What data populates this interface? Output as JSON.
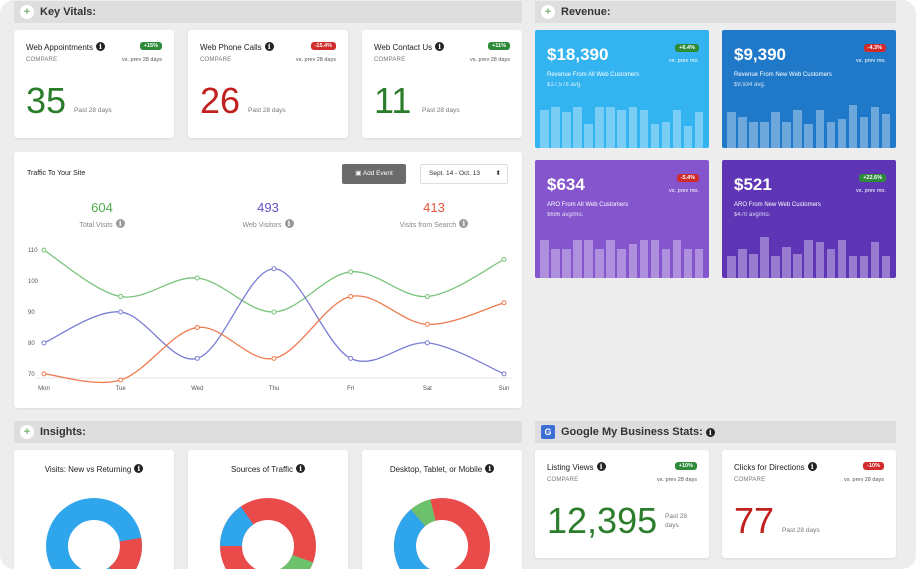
{
  "sections": {
    "key_vitals": "Key Vitals:",
    "revenue": "Revenue:",
    "insights": "Insights:",
    "gmb": "Google My Business Stats:"
  },
  "vitals": [
    {
      "title": "Web Appointments",
      "compare": "COMPARE",
      "badge": "+15%",
      "trend": "up",
      "vs": "vs. prev 28 days",
      "value": "35",
      "past": "Past 28 days"
    },
    {
      "title": "Web Phone Calls",
      "compare": "COMPARE",
      "badge": "-15.4%",
      "trend": "down",
      "vs": "vs. prev 28 days",
      "value": "26",
      "past": "Past 28 days"
    },
    {
      "title": "Web Contact Us",
      "compare": "COMPARE",
      "badge": "+11%",
      "trend": "up",
      "vs": "vs. prev 28 days",
      "value": "11",
      "past": "Past 28 days"
    }
  ],
  "revenue": [
    {
      "amount": "$18,390",
      "badge": "+6.4%",
      "trend": "up",
      "vs": "vs. prev mo.",
      "label": "Revenue From All Web Customers",
      "sub": "$17,578 avg.",
      "color": "#33b3f0",
      "bars": [
        0.8,
        0.85,
        0.75,
        0.85,
        0.5,
        0.85,
        0.85,
        0.8,
        0.85,
        0.8,
        0.5,
        0.55,
        0.8,
        0.45,
        0.75
      ]
    },
    {
      "amount": "$9,390",
      "badge": "-4.3%",
      "trend": "down",
      "vs": "vs. prev mo.",
      "label": "Revenue From New Web Customers",
      "sub": "$9,934 avg.",
      "color": "#1f79c8",
      "bars": [
        0.75,
        0.65,
        0.55,
        0.55,
        0.75,
        0.55,
        0.8,
        0.5,
        0.8,
        0.55,
        0.6,
        0.9,
        0.65,
        0.85,
        0.7
      ]
    },
    {
      "amount": "$634",
      "badge": "-5.4%",
      "trend": "down",
      "vs": "vs. prev mo.",
      "label": "ARO From All Web Customers",
      "sub": "$696 avg/mo.",
      "color": "#8455cc",
      "bars": [
        0.8,
        0.6,
        0.6,
        0.8,
        0.8,
        0.6,
        0.8,
        0.6,
        0.7,
        0.8,
        0.8,
        0.6,
        0.8,
        0.6,
        0.6
      ]
    },
    {
      "amount": "$521",
      "badge": "+22.6%",
      "trend": "up",
      "vs": "vs. prev mo.",
      "label": "ARO From New Web Customers",
      "sub": "$470 avg/mo.",
      "color": "#5e35b5",
      "bars": [
        0.45,
        0.6,
        0.5,
        0.85,
        0.45,
        0.65,
        0.5,
        0.8,
        0.75,
        0.6,
        0.8,
        0.45,
        0.45,
        0.75,
        0.45
      ]
    }
  ],
  "traffic": {
    "title": "Traffic To Your Site",
    "add_event": "Add Event",
    "date_range": "Sept. 14 - Oct. 13",
    "stats": [
      {
        "value": "604",
        "label": "Total Visits",
        "color": "#4cae4c"
      },
      {
        "value": "493",
        "label": "Web Visitors",
        "color": "#6a4fc9"
      },
      {
        "value": "413",
        "label": "Visits from Search",
        "color": "#e4553a"
      }
    ]
  },
  "chart_data": {
    "type": "line",
    "categories": [
      "Mon",
      "Tue",
      "Wed",
      "Thu",
      "Fri",
      "Sat",
      "Sun"
    ],
    "ylim": [
      68,
      112
    ],
    "yticks": [
      "110",
      "100",
      "90",
      "80",
      "70"
    ],
    "series": [
      {
        "color": "#7ac47a",
        "values": [
          110,
          95,
          101,
          90,
          103,
          95,
          107
        ]
      },
      {
        "color": "#7a7ed4",
        "values": [
          80,
          90,
          75,
          104,
          75,
          80,
          70
        ]
      },
      {
        "color": "#ef7b4f",
        "values": [
          70,
          68,
          85,
          75,
          95,
          86,
          93
        ]
      }
    ]
  },
  "insights": [
    {
      "title": "Visits: New vs Returning"
    },
    {
      "title": "Sources of Traffic"
    },
    {
      "title": "Desktop, Tablet, or Mobile"
    }
  ],
  "gmb": [
    {
      "title": "Listing Views",
      "compare": "COMPARE",
      "badge": "+10%",
      "trend": "up",
      "vs": "vs. prev 28 days",
      "value": "12,395",
      "past": "Past 28 days"
    },
    {
      "title": "Clicks for Directions",
      "compare": "COMPARE",
      "badge": "-10%",
      "trend": "down",
      "vs": "vs. prev 28 days",
      "value": "77",
      "past": "Past 28 days"
    }
  ]
}
